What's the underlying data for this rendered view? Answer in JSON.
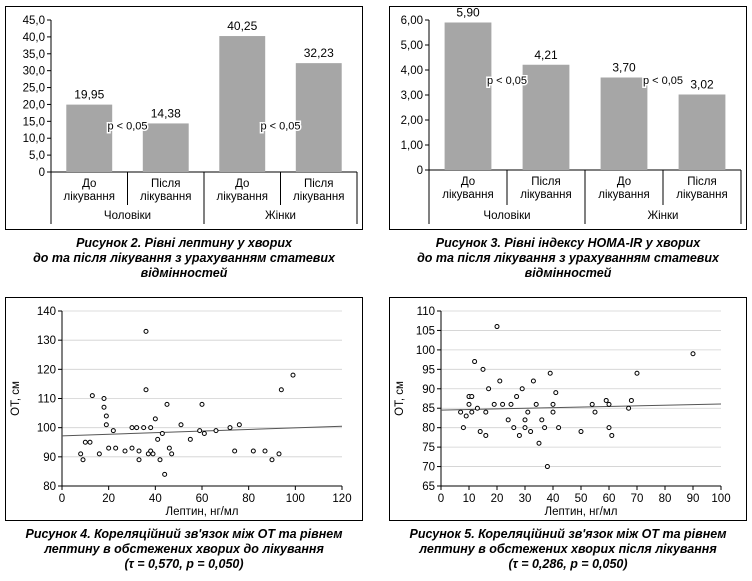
{
  "chart_data": [
    {
      "type": "bar",
      "categories": [
        "До лікування",
        "Після лікування",
        "До лікування",
        "Після лікування"
      ],
      "category_lines": [
        [
          "До",
          "лікування"
        ],
        [
          "Після",
          "лікування"
        ],
        [
          "До",
          "лікування"
        ],
        [
          "Після",
          "лікування"
        ]
      ],
      "groups": [
        "Чоловіки",
        "Жінки"
      ],
      "values": [
        19.95,
        14.38,
        40.25,
        32.23
      ],
      "value_labels": [
        "19,95",
        "14,38",
        "40,25",
        "32,23"
      ],
      "annotations": [
        "p < 0,05",
        "p < 0,05"
      ],
      "yticks": [
        "0",
        "5,0",
        "10,0",
        "15,0",
        "20,0",
        "25,0",
        "30,0",
        "35,0",
        "40,0",
        "45,0"
      ],
      "ylim": [
        0,
        45
      ],
      "bar_color": "#a6a6a6",
      "caption": [
        "Рисунок 2. Рівні лептину у хворих",
        "до та після лікування з урахуванням статевих",
        "відмінностей"
      ]
    },
    {
      "type": "bar",
      "categories": [
        "До лікування",
        "Після лікування",
        "До лікування",
        "Після лікування"
      ],
      "category_lines": [
        [
          "До",
          "лікування"
        ],
        [
          "Після",
          "лікування"
        ],
        [
          "До",
          "лікування"
        ],
        [
          "Після",
          "лікування"
        ]
      ],
      "groups": [
        "Чоловіки",
        "Жінки"
      ],
      "values": [
        5.9,
        4.21,
        3.7,
        3.02
      ],
      "value_labels": [
        "5,90",
        "4,21",
        "3,70",
        "3,02"
      ],
      "annotations": [
        "p < 0,05",
        "p < 0,05"
      ],
      "yticks": [
        "0",
        "1,00",
        "2,00",
        "3,00",
        "4,00",
        "5,00",
        "6,00"
      ],
      "ylim": [
        0,
        6
      ],
      "bar_color": "#a6a6a6",
      "caption": [
        "Рисунок 3. Рівні індексу HOMA-IR у хворих",
        "до та після лікування з урахуванням статевих",
        "відмінностей"
      ]
    },
    {
      "type": "scatter",
      "xlabel": "Лептин, нг/мл",
      "ylabel": "ОТ, см",
      "xlim": [
        0,
        120
      ],
      "ylim": [
        80,
        140
      ],
      "xticks": [
        0,
        20,
        40,
        60,
        80,
        100,
        120
      ],
      "yticks": [
        80,
        90,
        100,
        110,
        120,
        130,
        140
      ],
      "points": [
        [
          8,
          91
        ],
        [
          9,
          89
        ],
        [
          10,
          95
        ],
        [
          12,
          95
        ],
        [
          13,
          111
        ],
        [
          16,
          91
        ],
        [
          18,
          110
        ],
        [
          18,
          107
        ],
        [
          19,
          104
        ],
        [
          19,
          101
        ],
        [
          20,
          93
        ],
        [
          22,
          99
        ],
        [
          23,
          93
        ],
        [
          27,
          92
        ],
        [
          30,
          100
        ],
        [
          30,
          93
        ],
        [
          32,
          100
        ],
        [
          33,
          89
        ],
        [
          33,
          92
        ],
        [
          35,
          100
        ],
        [
          36,
          133
        ],
        [
          36,
          113
        ],
        [
          37,
          91
        ],
        [
          38,
          92
        ],
        [
          38,
          100
        ],
        [
          39,
          91
        ],
        [
          40,
          103
        ],
        [
          41,
          96
        ],
        [
          42,
          89
        ],
        [
          43,
          98
        ],
        [
          44,
          84
        ],
        [
          45,
          108
        ],
        [
          46,
          93
        ],
        [
          47,
          91
        ],
        [
          51,
          101
        ],
        [
          55,
          96
        ],
        [
          59,
          99
        ],
        [
          60,
          108
        ],
        [
          61,
          98
        ],
        [
          66,
          99
        ],
        [
          72,
          100
        ],
        [
          74,
          92
        ],
        [
          76,
          101
        ],
        [
          82,
          92
        ],
        [
          87,
          92
        ],
        [
          90,
          89
        ],
        [
          93,
          91
        ],
        [
          94,
          113
        ],
        [
          99,
          118
        ]
      ],
      "trend": [
        [
          0,
          97.2
        ],
        [
          120,
          100.5
        ]
      ],
      "caption": [
        "Рисунок 4. Кореляційний зв'язок між ОТ та рівнем",
        "лептину в обстежених хворих до лікування",
        "(τ = 0,570, p = 0,050)"
      ]
    },
    {
      "type": "scatter",
      "xlabel": "Лептин, нг/мл",
      "ylabel": "ОТ, см",
      "xlim": [
        0,
        100
      ],
      "ylim": [
        65,
        110
      ],
      "xticks": [
        0,
        10,
        20,
        30,
        40,
        50,
        60,
        70,
        80,
        90,
        100
      ],
      "yticks": [
        65,
        70,
        75,
        80,
        85,
        90,
        95,
        100,
        105,
        110
      ],
      "points": [
        [
          7,
          84
        ],
        [
          8,
          80
        ],
        [
          9,
          83
        ],
        [
          10,
          86
        ],
        [
          10,
          88
        ],
        [
          11,
          88
        ],
        [
          11,
          84
        ],
        [
          12,
          97
        ],
        [
          13,
          85
        ],
        [
          14,
          79
        ],
        [
          15,
          95
        ],
        [
          16,
          78
        ],
        [
          16,
          84
        ],
        [
          17,
          90
        ],
        [
          19,
          86
        ],
        [
          20,
          106
        ],
        [
          21,
          92
        ],
        [
          22,
          86
        ],
        [
          24,
          82
        ],
        [
          25,
          86
        ],
        [
          26,
          80
        ],
        [
          27,
          88
        ],
        [
          28,
          78
        ],
        [
          29,
          90
        ],
        [
          30,
          82
        ],
        [
          30,
          80
        ],
        [
          31,
          84
        ],
        [
          32,
          79
        ],
        [
          33,
          92
        ],
        [
          34,
          86
        ],
        [
          35,
          76
        ],
        [
          36,
          82
        ],
        [
          37,
          80
        ],
        [
          38,
          70
        ],
        [
          39,
          94
        ],
        [
          40,
          86
        ],
        [
          40,
          84
        ],
        [
          41,
          89
        ],
        [
          42,
          80
        ],
        [
          50,
          79
        ],
        [
          54,
          86
        ],
        [
          55,
          84
        ],
        [
          59,
          87
        ],
        [
          60,
          86
        ],
        [
          60,
          80
        ],
        [
          61,
          78
        ],
        [
          67,
          85
        ],
        [
          68,
          87
        ],
        [
          70,
          94
        ],
        [
          90,
          99
        ]
      ],
      "trend": [
        [
          0,
          84.5
        ],
        [
          100,
          86.1
        ]
      ],
      "caption": [
        "Рисунок 5. Кореляційний зв'язок між ОТ та рівнем",
        "лептину в обстежених хворих після лікування",
        "(τ = 0,286, p = 0,050)"
      ]
    }
  ]
}
